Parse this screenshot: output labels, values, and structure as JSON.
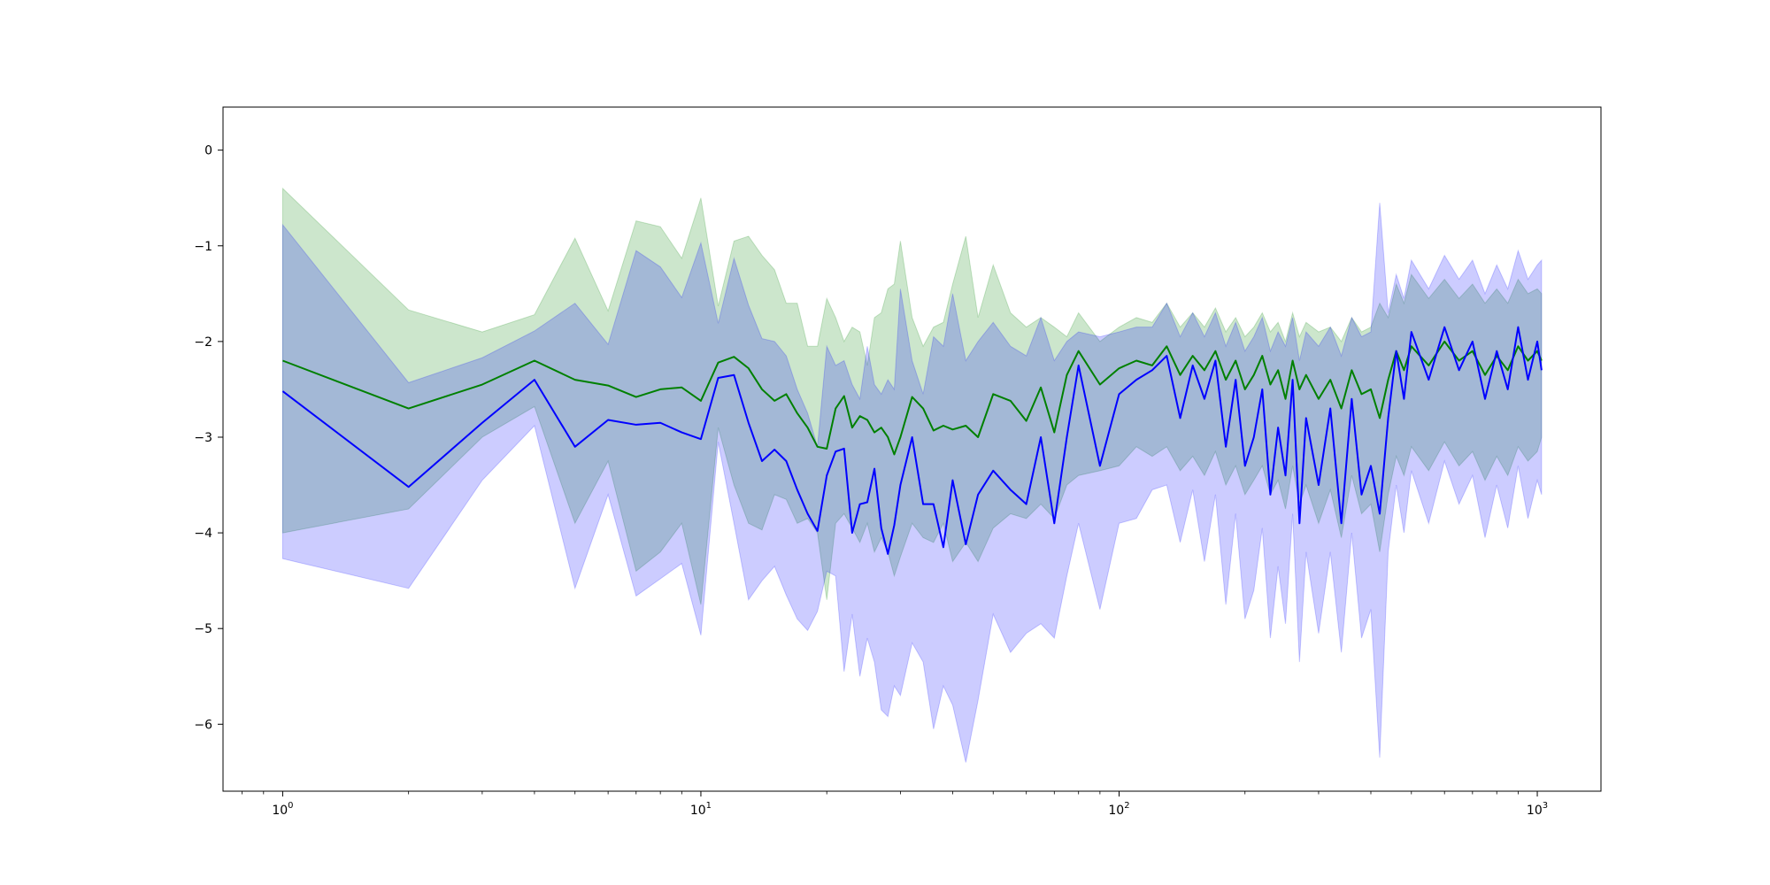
{
  "chart_data": {
    "type": "line",
    "title": "",
    "xlabel": "",
    "ylabel": "",
    "xscale": "log",
    "xlim": [
      0.72,
      1420
    ],
    "ylim": [
      -6.7,
      0.45
    ],
    "grid": false,
    "legend": "none",
    "x_ticks": [
      {
        "value": 1,
        "base": "10",
        "exp": "0"
      },
      {
        "value": 10,
        "base": "10",
        "exp": "1"
      },
      {
        "value": 100,
        "base": "10",
        "exp": "2"
      },
      {
        "value": 1000,
        "base": "10",
        "exp": "3"
      }
    ],
    "y_ticks": [
      {
        "value": 0,
        "label": "0"
      },
      {
        "value": -1,
        "label": "−1"
      },
      {
        "value": -2,
        "label": "−2"
      },
      {
        "value": -3,
        "label": "−3"
      },
      {
        "value": -4,
        "label": "−4"
      },
      {
        "value": -5,
        "label": "−5"
      },
      {
        "value": -6,
        "label": "−6"
      }
    ],
    "series": [
      {
        "color": "#008000",
        "band_color": "#008000",
        "band_opacity": 0.2,
        "x": [
          1,
          2,
          3,
          4,
          5,
          6,
          7,
          8,
          9,
          10,
          11,
          12,
          13,
          14,
          15,
          16,
          17,
          18,
          19,
          20,
          21,
          22,
          23,
          24,
          25,
          26,
          27,
          28,
          29,
          30,
          32,
          34,
          36,
          38,
          40,
          43,
          46,
          50,
          55,
          60,
          65,
          70,
          75,
          80,
          90,
          100,
          110,
          120,
          130,
          140,
          150,
          160,
          170,
          180,
          190,
          200,
          210,
          220,
          230,
          240,
          250,
          260,
          270,
          280,
          300,
          320,
          340,
          360,
          380,
          400,
          420,
          440,
          460,
          480,
          500,
          550,
          600,
          650,
          700,
          750,
          800,
          850,
          900,
          950,
          1000,
          1024
        ],
        "y": [
          -2.2,
          -2.7,
          -2.45,
          -2.2,
          -2.4,
          -2.46,
          -2.58,
          -2.5,
          -2.48,
          -2.62,
          -2.22,
          -2.16,
          -2.28,
          -2.5,
          -2.62,
          -2.55,
          -2.75,
          -2.9,
          -3.1,
          -3.12,
          -2.7,
          -2.57,
          -2.9,
          -2.78,
          -2.82,
          -2.95,
          -2.9,
          -3.0,
          -3.18,
          -3.0,
          -2.58,
          -2.7,
          -2.93,
          -2.88,
          -2.92,
          -2.88,
          -3.0,
          -2.55,
          -2.62,
          -2.83,
          -2.48,
          -2.95,
          -2.35,
          -2.1,
          -2.45,
          -2.28,
          -2.2,
          -2.25,
          -2.05,
          -2.35,
          -2.15,
          -2.3,
          -2.1,
          -2.4,
          -2.2,
          -2.5,
          -2.35,
          -2.15,
          -2.45,
          -2.3,
          -2.6,
          -2.2,
          -2.5,
          -2.35,
          -2.6,
          -2.4,
          -2.7,
          -2.3,
          -2.55,
          -2.5,
          -2.8,
          -2.4,
          -2.1,
          -2.3,
          -2.05,
          -2.25,
          -2.0,
          -2.2,
          -2.1,
          -2.35,
          -2.15,
          -2.3,
          -2.05,
          -2.2,
          -2.1,
          -2.2
        ],
        "lower": [
          -4.0,
          -3.75,
          -3.0,
          -2.68,
          -3.9,
          -3.25,
          -4.4,
          -4.2,
          -3.9,
          -4.75,
          -2.9,
          -3.5,
          -3.9,
          -3.97,
          -3.6,
          -3.65,
          -3.9,
          -3.85,
          -4.0,
          -4.7,
          -3.9,
          -3.8,
          -3.95,
          -4.1,
          -3.9,
          -4.2,
          -4.05,
          -4.2,
          -4.45,
          -4.25,
          -3.9,
          -4.05,
          -4.1,
          -3.9,
          -4.3,
          -4.1,
          -4.3,
          -3.95,
          -3.8,
          -3.85,
          -3.7,
          -3.85,
          -3.5,
          -3.4,
          -3.35,
          -3.3,
          -3.1,
          -3.2,
          -3.1,
          -3.35,
          -3.2,
          -3.4,
          -3.15,
          -3.5,
          -3.3,
          -3.6,
          -3.45,
          -3.3,
          -3.6,
          -3.45,
          -3.75,
          -3.3,
          -3.7,
          -3.5,
          -3.9,
          -3.55,
          -4.05,
          -3.4,
          -3.8,
          -3.7,
          -4.2,
          -3.6,
          -3.2,
          -3.4,
          -3.1,
          -3.35,
          -3.05,
          -3.3,
          -3.15,
          -3.45,
          -3.2,
          -3.4,
          -3.1,
          -3.25,
          -3.15,
          -3.0
        ],
        "upper": [
          -0.4,
          -1.67,
          -1.9,
          -1.72,
          -0.92,
          -1.68,
          -0.74,
          -0.8,
          -1.13,
          -0.5,
          -1.63,
          -0.95,
          -0.9,
          -1.1,
          -1.25,
          -1.6,
          -1.6,
          -2.05,
          -2.05,
          -1.55,
          -1.75,
          -2.0,
          -1.85,
          -1.9,
          -2.25,
          -1.75,
          -1.7,
          -1.45,
          -1.4,
          -0.95,
          -1.75,
          -2.05,
          -1.85,
          -1.8,
          -1.4,
          -0.9,
          -1.75,
          -1.2,
          -1.7,
          -1.85,
          -1.75,
          -1.85,
          -1.95,
          -1.7,
          -2.0,
          -1.85,
          -1.75,
          -1.8,
          -1.6,
          -1.85,
          -1.7,
          -1.85,
          -1.65,
          -1.9,
          -1.75,
          -1.95,
          -1.85,
          -1.7,
          -1.9,
          -1.8,
          -2.0,
          -1.7,
          -1.95,
          -1.8,
          -1.9,
          -1.85,
          -2.0,
          -1.75,
          -1.9,
          -1.85,
          -1.6,
          -1.75,
          -1.4,
          -1.6,
          -1.3,
          -1.55,
          -1.35,
          -1.55,
          -1.4,
          -1.6,
          -1.45,
          -1.6,
          -1.35,
          -1.5,
          -1.45,
          -1.5
        ]
      },
      {
        "color": "#0000ff",
        "band_color": "#0000ff",
        "band_opacity": 0.2,
        "x": [
          1,
          2,
          3,
          4,
          5,
          6,
          7,
          8,
          9,
          10,
          11,
          12,
          13,
          14,
          15,
          16,
          17,
          18,
          19,
          20,
          21,
          22,
          23,
          24,
          25,
          26,
          27,
          28,
          29,
          30,
          32,
          34,
          36,
          38,
          40,
          43,
          46,
          50,
          55,
          60,
          65,
          70,
          75,
          80,
          90,
          100,
          110,
          120,
          130,
          140,
          150,
          160,
          170,
          180,
          190,
          200,
          210,
          220,
          230,
          240,
          250,
          260,
          270,
          280,
          300,
          320,
          340,
          360,
          380,
          400,
          420,
          440,
          460,
          480,
          500,
          550,
          600,
          650,
          700,
          750,
          800,
          850,
          900,
          950,
          1000,
          1024
        ],
        "y": [
          -2.52,
          -3.52,
          -2.85,
          -2.4,
          -3.1,
          -2.82,
          -2.87,
          -2.85,
          -2.95,
          -3.02,
          -2.38,
          -2.35,
          -2.85,
          -3.25,
          -3.13,
          -3.25,
          -3.55,
          -3.8,
          -3.98,
          -3.4,
          -3.15,
          -3.12,
          -4.0,
          -3.7,
          -3.68,
          -3.33,
          -3.95,
          -4.22,
          -3.92,
          -3.5,
          -3.0,
          -3.7,
          -3.7,
          -4.15,
          -3.45,
          -4.12,
          -3.6,
          -3.35,
          -3.55,
          -3.7,
          -3.0,
          -3.9,
          -3.0,
          -2.25,
          -3.3,
          -2.55,
          -2.4,
          -2.3,
          -2.15,
          -2.8,
          -2.25,
          -2.6,
          -2.2,
          -3.1,
          -2.4,
          -3.3,
          -3.0,
          -2.5,
          -3.6,
          -2.9,
          -3.4,
          -2.4,
          -3.9,
          -2.8,
          -3.5,
          -2.7,
          -3.9,
          -2.6,
          -3.6,
          -3.3,
          -3.8,
          -2.8,
          -2.1,
          -2.6,
          -1.9,
          -2.4,
          -1.85,
          -2.3,
          -2.0,
          -2.6,
          -2.1,
          -2.5,
          -1.85,
          -2.4,
          -2.0,
          -2.3
        ],
        "lower": [
          -4.27,
          -4.58,
          -3.45,
          -2.88,
          -4.58,
          -3.6,
          -4.66,
          -4.48,
          -4.32,
          -5.07,
          -3.05,
          -3.9,
          -4.7,
          -4.5,
          -4.35,
          -4.65,
          -4.9,
          -5.02,
          -4.82,
          -4.4,
          -4.45,
          -5.45,
          -4.85,
          -5.5,
          -5.1,
          -5.35,
          -5.85,
          -5.92,
          -5.6,
          -5.7,
          -5.15,
          -5.35,
          -6.05,
          -5.6,
          -5.8,
          -6.4,
          -5.75,
          -4.85,
          -5.25,
          -5.05,
          -4.95,
          -5.1,
          -4.45,
          -3.9,
          -4.8,
          -3.9,
          -3.85,
          -3.55,
          -3.5,
          -4.1,
          -3.55,
          -4.3,
          -3.6,
          -4.75,
          -3.8,
          -4.9,
          -4.6,
          -3.95,
          -5.1,
          -4.35,
          -4.95,
          -3.8,
          -5.35,
          -4.2,
          -5.05,
          -4.2,
          -5.25,
          -4.0,
          -5.1,
          -4.8,
          -6.35,
          -4.2,
          -3.5,
          -4.0,
          -3.35,
          -3.9,
          -3.25,
          -3.7,
          -3.4,
          -4.05,
          -3.5,
          -3.95,
          -3.3,
          -3.85,
          -3.45,
          -3.6
        ],
        "upper": [
          -0.78,
          -2.43,
          -2.17,
          -1.89,
          -1.6,
          -2.03,
          -1.05,
          -1.22,
          -1.54,
          -0.97,
          -1.81,
          -1.13,
          -1.62,
          -1.97,
          -2.0,
          -2.15,
          -2.5,
          -2.75,
          -3.1,
          -2.05,
          -2.25,
          -2.2,
          -2.45,
          -2.6,
          -2.05,
          -2.45,
          -2.55,
          -2.4,
          -2.5,
          -1.45,
          -2.2,
          -2.55,
          -1.95,
          -2.05,
          -1.5,
          -2.2,
          -2.0,
          -1.8,
          -2.05,
          -2.15,
          -1.75,
          -2.2,
          -2.0,
          -1.9,
          -1.95,
          -1.9,
          -1.85,
          -1.85,
          -1.6,
          -1.95,
          -1.7,
          -1.95,
          -1.7,
          -2.05,
          -1.8,
          -2.1,
          -1.95,
          -1.75,
          -2.1,
          -1.9,
          -2.05,
          -1.75,
          -2.2,
          -1.9,
          -2.05,
          -1.85,
          -2.15,
          -1.75,
          -1.95,
          -1.9,
          -0.55,
          -1.7,
          -1.3,
          -1.55,
          -1.15,
          -1.45,
          -1.1,
          -1.35,
          -1.15,
          -1.5,
          -1.2,
          -1.45,
          -1.05,
          -1.35,
          -1.2,
          -1.15
        ]
      }
    ]
  }
}
